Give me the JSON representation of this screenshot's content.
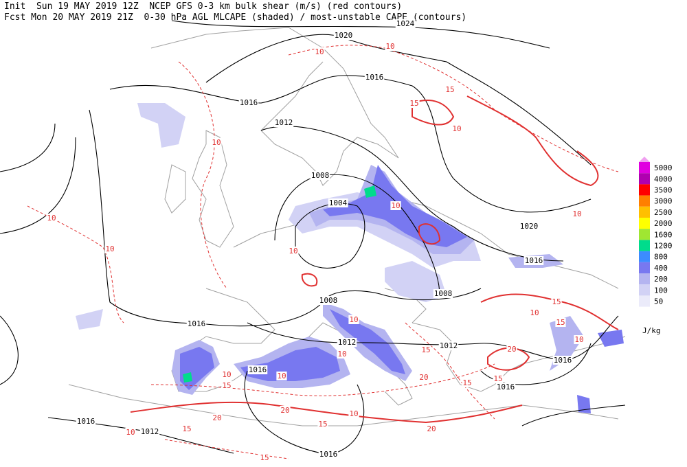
{
  "header": {
    "line1": "Init  Sun 19 MAY 2019 12Z  NCEP GFS 0-3 km bulk shear (m/s) (red contours)",
    "line2": "Fcst Mon 20 MAY 2019 21Z  0-30 hPa AGL MLCAPE (shaded) / most-unstable CAPE (contours)"
  },
  "colorbar": {
    "unit": "J/kg",
    "levels": [
      {
        "label": "5000",
        "color": "#e000e0"
      },
      {
        "label": "4000",
        "color": "#b000b0"
      },
      {
        "label": "3500",
        "color": "#ff0000"
      },
      {
        "label": "3000",
        "color": "#ff7f00"
      },
      {
        "label": "2500",
        "color": "#ffbf00"
      },
      {
        "label": "2000",
        "color": "#ffff00"
      },
      {
        "label": "1600",
        "color": "#a0e632"
      },
      {
        "label": "1200",
        "color": "#00dc8c"
      },
      {
        "label": "800",
        "color": "#3c8cff"
      },
      {
        "label": "400",
        "color": "#7878f0"
      },
      {
        "label": "200",
        "color": "#b4b4f0"
      },
      {
        "label": "100",
        "color": "#d2d2f5"
      },
      {
        "label": "50",
        "color": "#ebebfa"
      }
    ],
    "top_color": "#f0a0f0"
  },
  "isobar_labels": [
    "1024",
    "1020",
    "1016",
    "1016",
    "1012",
    "1008",
    "1004",
    "1020",
    "1016",
    "1008",
    "1008",
    "1016",
    "1012",
    "1012",
    "1016",
    "1016",
    "1016",
    "1016",
    "1012",
    "1016"
  ],
  "shear_labels": [
    "10",
    "10",
    "15",
    "10",
    "15",
    "10",
    "10",
    "10",
    "10",
    "10",
    "10",
    "15",
    "10",
    "15",
    "10",
    "20",
    "15",
    "20",
    "15",
    "15",
    "15",
    "10",
    "10",
    "10",
    "20",
    "15",
    "10",
    "15",
    "10",
    "20",
    "15",
    "20",
    "10"
  ]
}
